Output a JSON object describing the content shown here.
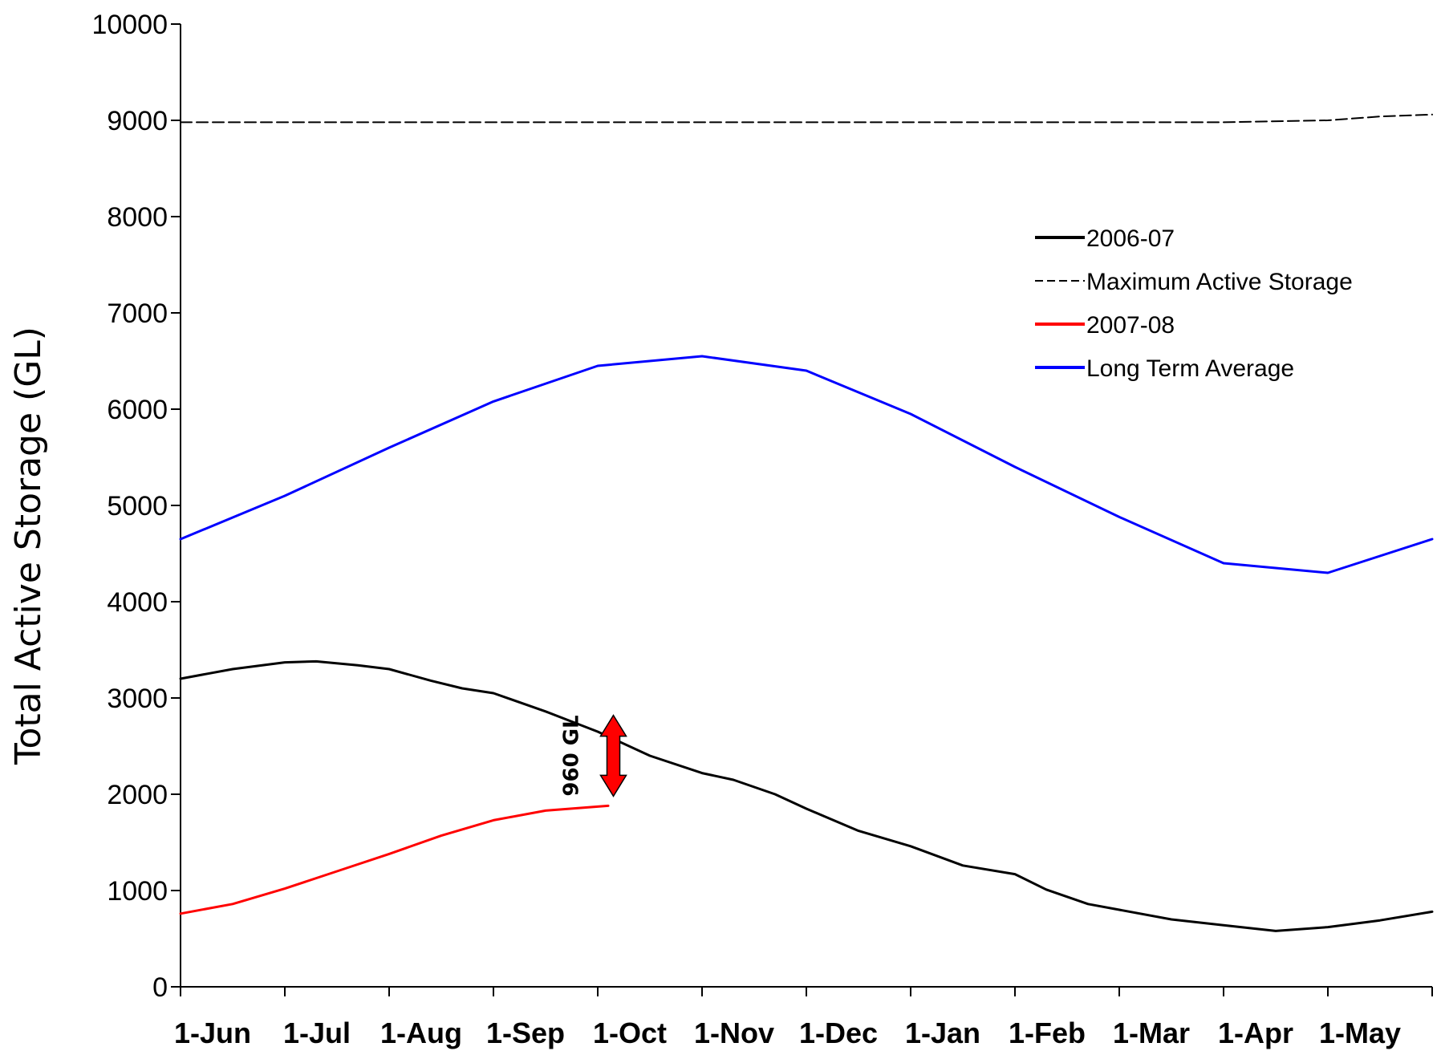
{
  "chart_data": {
    "type": "line",
    "xlabel": "",
    "ylabel": "Total Active Storage (GL)",
    "ylim": [
      0,
      10000
    ],
    "y_ticks": [
      0,
      1000,
      2000,
      3000,
      4000,
      5000,
      6000,
      7000,
      8000,
      9000,
      10000
    ],
    "x_ticks": [
      "1-Jun",
      "1-Jul",
      "1-Aug",
      "1-Sep",
      "1-Oct",
      "1-Nov",
      "1-Dec",
      "1-Jan",
      "1-Feb",
      "1-Mar",
      "1-Apr",
      "1-May"
    ],
    "x_range_months": [
      0,
      12
    ],
    "grid": false,
    "legend_position": "top-right",
    "series": [
      {
        "name": "2006-07",
        "color": "#000000",
        "dash": "solid",
        "x_months": [
          0,
          0.5,
          1.0,
          1.3,
          1.7,
          2.0,
          2.4,
          2.7,
          3.0,
          3.5,
          4.0,
          4.5,
          5.0,
          5.3,
          5.7,
          6.0,
          6.5,
          7.0,
          7.5,
          8.0,
          8.3,
          8.7,
          9.0,
          9.5,
          10.0,
          10.5,
          11.0,
          11.5,
          12.0
        ],
        "values": [
          3200,
          3300,
          3370,
          3380,
          3340,
          3300,
          3180,
          3100,
          3050,
          2860,
          2650,
          2400,
          2220,
          2150,
          2000,
          1850,
          1620,
          1460,
          1260,
          1170,
          1010,
          860,
          800,
          700,
          640,
          580,
          620,
          690,
          780
        ]
      },
      {
        "name": "Maximum Active Storage",
        "color": "#000000",
        "dash": "dashed",
        "x_months": [
          0,
          10.0,
          11.0,
          11.5,
          12.0
        ],
        "values": [
          8980,
          8980,
          9000,
          9040,
          9060
        ]
      },
      {
        "name": "2007-08",
        "color": "#ff0000",
        "dash": "solid",
        "x_months": [
          0,
          0.5,
          1.0,
          1.5,
          2.0,
          2.5,
          3.0,
          3.5,
          4.1
        ],
        "values": [
          760,
          860,
          1020,
          1200,
          1380,
          1570,
          1730,
          1830,
          1880
        ]
      },
      {
        "name": "Long Term Average",
        "color": "#0000ff",
        "dash": "solid",
        "x_months": [
          0,
          1.0,
          2.0,
          3.0,
          4.0,
          5.0,
          6.0,
          7.0,
          8.0,
          9.0,
          10.0,
          11.0,
          12.0
        ],
        "values": [
          4650,
          5100,
          5600,
          6080,
          6450,
          6550,
          6400,
          5950,
          5400,
          4880,
          4400,
          4300,
          4650
        ]
      }
    ],
    "annotations": [
      {
        "text": "960 GL",
        "x_month": 4.15,
        "y_from": 1980,
        "y_to": 2820,
        "color": "#ff0000"
      }
    ]
  }
}
